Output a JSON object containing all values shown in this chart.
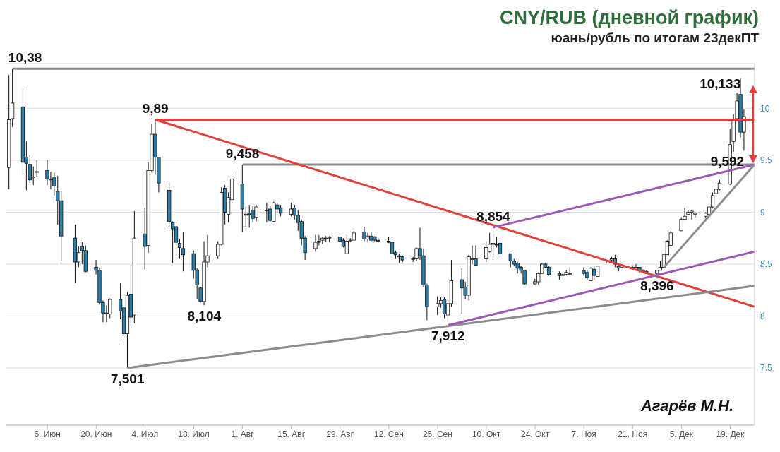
{
  "chart_data": {
    "type": "candlestick",
    "title": "CNY/RUB (дневной график)",
    "subtitle": "юань/рубль по итогам 23декПТ",
    "grid": "y",
    "colors": [
      "#ffffff",
      "#ffffff",
      "#2a7fab",
      "#2a7fab",
      "#2a7fab",
      "#ffffff",
      "#ffffff",
      "#2a7fab",
      "#2a7fab",
      "#2a7fab",
      "#2a7fab",
      "#2a7fab",
      "#2a7fab",
      "#ffffff",
      "#2a7fab",
      "#2a7fab",
      "#2a7fab",
      "#2a7fab",
      "#2a7fab",
      "#2a7fab",
      "#ffffff",
      "#2a7fab",
      "#2a7fab",
      "#ffffff",
      "#2a7fab",
      "#ffffff",
      "#2a7fab",
      "#ffffff",
      "#ffffff",
      "#2a7fab",
      "#2a7fab",
      "#2a7fab",
      "#2a7fab",
      "#2a7fab",
      "#2a7fab",
      "#2a7fab",
      "#2a7fab",
      "#2a7fab",
      "#2a7fab",
      "#ffffff",
      "#ffffff",
      "#ffffff",
      "#ffffff",
      "#2a7fab",
      "#ffffff",
      "#ffffff",
      "#2a7fab",
      "#2a7fab",
      "#2a7fab",
      "#2a7fab",
      "#ffffff",
      "#ffffff",
      "#2a7fab",
      "#ffffff",
      "#2a7fab",
      "#2a7fab",
      "#ffffff",
      "#2a7fab",
      "#2a7fab",
      "#2a7fab",
      "#2a7fab",
      "#ffffff",
      "#ffffff",
      "#ffffff",
      "#ffffff",
      "#2a7fab",
      "#2a7fab",
      "#2a7fab",
      "#ffffff",
      "#ffffff",
      "#ffffff",
      "#2a7fab",
      "#ffffff",
      "#2a7fab",
      "#2a7fab",
      "#2a7fab",
      "#2a7fab",
      "#2a7fab",
      "#2a7fab",
      "#2a7fab",
      "#2a7fab",
      "#ffffff",
      "#ffffff",
      "#2a7fab",
      "#2a7fab",
      "#2a7fab",
      "#ffffff",
      "#ffffff",
      "#2a7fab",
      "#ffffff",
      "#ffffff",
      "#2a7fab",
      "#2a7fab",
      "#ffffff",
      "#ffffff",
      "#2a7fab",
      "#ffffff",
      "#ffffff",
      "#ffffff",
      "#ffffff",
      "#2a7fab",
      "#2a7fab",
      "#2a7fab",
      "#2a7fab",
      "#2a7fab",
      "#2a7fab",
      "#ffffff",
      "#ffffff",
      "#ffffff",
      "#2a7fab",
      "#2a7fab",
      "#2a7fab",
      "#ffffff",
      "#ffffff",
      "#ffffff",
      "#2a7fab",
      "#2a7fab",
      "#ffffff",
      "#2a7fab",
      "#ffffff",
      "#ffffff",
      "#ffffff",
      "#2a7fab",
      "#2a7fab",
      "#ffffff",
      "#ffffff",
      "#ffffff",
      "#2a7fab",
      "#2a7fab",
      "#2a7fab",
      "#ffffff",
      "#ffffff",
      "#ffffff",
      "#ffffff",
      "#ffffff",
      "#ffffff",
      "#ffffff",
      "#ffffff",
      "#ffffff",
      "#ffffff",
      "#ffffff",
      "#ffffff",
      "#ffffff",
      "#ffffff",
      "#ffffff",
      "#ffffff",
      "#ffffff",
      "#ffffff",
      "#2a7fab",
      "#ffffff"
    ],
    "xlim": [
      "--05-25",
      "--12-26"
    ],
    "xticks": [
      {
        "value": "--06-06",
        "label": "6. Июн"
      },
      {
        "value": "--06-20",
        "label": "20. Июн"
      },
      {
        "value": "--07-04",
        "label": "4. Июл"
      },
      {
        "value": "--07-18",
        "label": "18. Июл"
      },
      {
        "value": "--08-01",
        "label": "1. Авг"
      },
      {
        "value": "--08-15",
        "label": "15. Авг"
      },
      {
        "value": "--08-29",
        "label": "29. Авг"
      },
      {
        "value": "--09-12",
        "label": "12. Сен"
      },
      {
        "value": "--09-26",
        "label": "26. Сен"
      },
      {
        "value": "--10-10",
        "label": "10. Окт"
      },
      {
        "value": "--10-24",
        "label": "24. Окт"
      },
      {
        "value": "--11-07",
        "label": "7. Ноя"
      },
      {
        "value": "--11-21",
        "label": "21. Ноя"
      },
      {
        "value": "--12-05",
        "label": "5. Дек"
      },
      {
        "value": "--12-19",
        "label": "19. Дек"
      }
    ],
    "ylim": [
      6.95,
      10.43
    ],
    "yticks": [
      7.5,
      8,
      8.5,
      9,
      9.5,
      10
    ],
    "x": [
      "--05-26",
      "--05-27",
      "--05-30",
      "--05-31",
      "--06-01",
      "--06-02",
      "--06-03",
      "--06-06",
      "--06-07",
      "--06-08",
      "--06-09",
      "--06-10",
      "--06-14",
      "--06-15",
      "--06-16",
      "--06-17",
      "--06-20",
      "--06-21",
      "--06-22",
      "--06-23",
      "--06-24",
      "--06-27",
      "--06-28",
      "--06-29",
      "--06-30",
      "--07-01",
      "--07-04",
      "--07-05",
      "--07-06",
      "--07-07",
      "--07-08",
      "--07-11",
      "--07-12",
      "--07-13",
      "--07-14",
      "--07-15",
      "--07-18",
      "--07-19",
      "--07-20",
      "--07-21",
      "--07-22",
      "--07-25",
      "--07-26",
      "--07-27",
      "--07-28",
      "--07-29",
      "--08-01",
      "--08-02",
      "--08-03",
      "--08-04",
      "--08-05",
      "--08-08",
      "--08-09",
      "--08-10",
      "--08-11",
      "--08-12",
      "--08-15",
      "--08-16",
      "--08-17",
      "--08-18",
      "--08-19",
      "--08-22",
      "--08-23",
      "--08-24",
      "--08-25",
      "--08-26",
      "--08-29",
      "--08-30",
      "--08-31",
      "--09-01",
      "--09-02",
      "--09-05",
      "--09-06",
      "--09-07",
      "--09-08",
      "--09-09",
      "--09-12",
      "--09-13",
      "--09-14",
      "--09-15",
      "--09-16",
      "--09-19",
      "--09-20",
      "--09-21",
      "--09-22",
      "--09-23",
      "--09-26",
      "--09-27",
      "--09-28",
      "--09-29",
      "--09-30",
      "--10-03",
      "--10-04",
      "--10-05",
      "--10-06",
      "--10-07",
      "--10-10",
      "--10-11",
      "--10-12",
      "--10-13",
      "--10-14",
      "--10-17",
      "--10-18",
      "--10-19",
      "--10-20",
      "--10-21",
      "--10-24",
      "--10-25",
      "--10-26",
      "--10-27",
      "--10-28",
      "--10-31",
      "--11-01",
      "--11-02",
      "--11-03",
      "--11-07",
      "--11-08",
      "--11-09",
      "--11-10",
      "--11-11",
      "--11-14",
      "--11-15",
      "--11-16",
      "--11-17",
      "--11-18",
      "--11-21",
      "--11-22",
      "--11-23",
      "--11-24",
      "--11-25",
      "--11-28",
      "--11-29",
      "--11-30",
      "--12-01",
      "--12-02",
      "--12-05",
      "--12-06",
      "--12-07",
      "--12-08",
      "--12-09",
      "--12-12",
      "--12-13",
      "--12-14",
      "--12-15",
      "--12-16",
      "--12-19",
      "--12-20",
      "--12-21",
      "--12-22",
      "--12-23"
    ],
    "ohlc": [
      [
        9.43,
        10.32,
        9.22,
        9.89
      ],
      [
        9.9,
        10.38,
        9.82,
        10.05
      ],
      [
        10.01,
        10.19,
        9.36,
        9.48
      ],
      [
        9.53,
        9.68,
        9.21,
        9.47
      ],
      [
        9.46,
        9.55,
        9.28,
        9.31
      ],
      [
        9.33,
        9.44,
        9.26,
        9.34
      ],
      [
        9.39,
        9.5,
        9.34,
        9.39
      ],
      [
        9.4,
        9.5,
        9.26,
        9.32
      ],
      [
        9.32,
        9.39,
        9.22,
        9.31
      ],
      [
        9.33,
        9.38,
        9.16,
        9.25
      ],
      [
        9.2,
        9.35,
        8.88,
        9.11
      ],
      [
        9.11,
        9.2,
        8.53,
        8.77
      ],
      [
        8.75,
        8.88,
        8.32,
        8.52
      ],
      [
        8.52,
        8.67,
        8.47,
        8.61
      ],
      [
        8.67,
        8.71,
        8.5,
        8.63
      ],
      [
        8.63,
        8.68,
        8.42,
        8.43
      ],
      [
        8.47,
        8.54,
        8.4,
        8.44
      ],
      [
        8.44,
        8.46,
        8.11,
        8.13
      ],
      [
        8.13,
        8.15,
        7.94,
        8.03
      ],
      [
        8.03,
        8.1,
        7.94,
        8.02
      ],
      [
        8.02,
        8.17,
        7.98,
        8.16
      ],
      [
        8.16,
        8.32,
        7.97,
        8.05
      ],
      [
        8.08,
        8.09,
        7.77,
        7.83
      ],
      [
        7.83,
        8.23,
        7.501,
        8.2
      ],
      [
        8.21,
        8.49,
        7.91,
        7.99
      ],
      [
        8.01,
        9.01,
        7.93,
        8.75
      ],
      [
        8.79,
        9.04,
        8.45,
        8.67
      ],
      [
        8.68,
        9.48,
        8.61,
        9.4
      ],
      [
        9.4,
        9.85,
        9.38,
        9.75
      ],
      [
        9.75,
        9.89,
        9.36,
        9.53
      ],
      [
        9.53,
        9.53,
        9.19,
        9.28
      ],
      [
        9.21,
        9.28,
        8.86,
        8.91
      ],
      [
        8.9,
        8.91,
        8.51,
        8.84
      ],
      [
        8.86,
        8.88,
        8.56,
        8.71
      ],
      [
        8.7,
        8.74,
        8.55,
        8.66
      ],
      [
        8.65,
        8.81,
        8.43,
        8.59
      ],
      [
        8.6,
        8.63,
        8.36,
        8.44
      ],
      [
        8.44,
        8.46,
        8.16,
        8.3
      ],
      [
        8.27,
        8.28,
        8.13,
        8.14
      ],
      [
        8.14,
        8.72,
        8.104,
        8.52
      ],
      [
        8.52,
        8.78,
        8.47,
        8.58
      ],
      [
        8.58,
        8.72,
        8.55,
        8.69
      ],
      [
        8.69,
        9.24,
        8.68,
        9.19
      ],
      [
        9.23,
        9.26,
        8.88,
        9.0
      ],
      [
        8.98,
        9.19,
        8.9,
        9.14
      ],
      [
        9.12,
        9.37,
        9.09,
        9.32
      ],
      [
        9.27,
        9.458,
        8.81,
        9.03
      ],
      [
        8.98,
        9.05,
        8.86,
        8.97
      ],
      [
        8.99,
        9.07,
        8.85,
        8.98
      ],
      [
        9.02,
        9.06,
        8.9,
        8.94
      ],
      [
        8.95,
        9.07,
        8.91,
        9.05
      ],
      [
        9.02,
        9.09,
        8.9,
        9.02
      ],
      [
        9.03,
        9.06,
        8.91,
        8.92
      ],
      [
        8.91,
        9.1,
        8.91,
        9.09
      ],
      [
        9.07,
        9.09,
        8.99,
        9.03
      ],
      [
        9.04,
        9.07,
        8.96,
        8.99
      ],
      [
        8.98,
        9.09,
        8.96,
        9.03
      ],
      [
        9.04,
        9.07,
        8.93,
        8.97
      ],
      [
        8.97,
        9.02,
        8.82,
        8.9
      ],
      [
        8.91,
        8.93,
        8.68,
        8.75
      ],
      [
        8.75,
        8.77,
        8.54,
        8.61
      ],
      [
        8.65,
        8.78,
        8.62,
        8.71
      ],
      [
        8.71,
        8.78,
        8.68,
        8.72
      ],
      [
        8.73,
        8.76,
        8.69,
        8.75
      ],
      [
        8.75,
        8.77,
        8.71,
        8.75
      ],
      [
        8.76,
        8.77,
        8.71,
        8.75
      ],
      [
        8.76,
        8.76,
        8.7,
        8.72
      ],
      [
        8.73,
        8.75,
        8.66,
        8.67
      ],
      [
        8.6,
        8.78,
        8.6,
        8.72
      ],
      [
        8.73,
        8.75,
        8.71,
        8.73
      ],
      [
        8.73,
        8.82,
        8.73,
        8.8
      ],
      [
        8.81,
        8.86,
        8.72,
        8.74
      ],
      [
        8.74,
        8.8,
        8.72,
        8.77
      ],
      [
        8.77,
        8.81,
        8.72,
        8.73
      ],
      [
        8.76,
        8.77,
        8.72,
        8.73
      ],
      [
        8.73,
        8.75,
        8.71,
        8.72
      ],
      [
        8.72,
        8.76,
        8.7,
        8.71
      ],
      [
        8.71,
        8.74,
        8.56,
        8.6
      ],
      [
        8.61,
        8.63,
        8.55,
        8.59
      ],
      [
        8.58,
        8.6,
        8.51,
        8.57
      ],
      [
        8.57,
        8.58,
        8.52,
        8.54
      ],
      [
        8.55,
        8.57,
        8.52,
        8.55
      ],
      [
        8.55,
        8.66,
        8.53,
        8.65
      ],
      [
        8.65,
        8.85,
        8.54,
        8.58
      ],
      [
        8.58,
        8.65,
        8.28,
        8.3
      ],
      [
        8.3,
        8.31,
        7.96,
        8.09
      ],
      [
        8.09,
        8.19,
        8.01,
        8.12
      ],
      [
        8.12,
        8.18,
        8.08,
        8.15
      ],
      [
        8.16,
        8.18,
        7.98,
        8.02
      ],
      [
        8.01,
        8.14,
        7.912,
        8.12
      ],
      [
        8.12,
        8.54,
        8.09,
        8.34
      ],
      [
        8.35,
        8.46,
        8.02,
        8.27
      ],
      [
        8.28,
        8.33,
        8.16,
        8.2
      ],
      [
        8.2,
        8.59,
        8.15,
        8.57
      ],
      [
        8.55,
        8.68,
        8.5,
        8.55
      ],
      [
        8.55,
        8.68,
        8.49,
        8.49
      ],
      [
        8.55,
        8.72,
        8.52,
        8.66
      ],
      [
        8.62,
        8.8,
        8.61,
        8.69
      ],
      [
        8.69,
        8.854,
        8.56,
        8.7
      ],
      [
        8.69,
        8.76,
        8.66,
        8.69
      ],
      [
        8.7,
        8.73,
        8.59,
        8.6
      ],
      [
        8.6,
        8.6,
        8.47,
        8.53
      ],
      [
        8.53,
        8.55,
        8.48,
        8.5
      ],
      [
        8.51,
        8.52,
        8.41,
        8.46
      ],
      [
        8.47,
        8.48,
        8.41,
        8.44
      ],
      [
        8.44,
        8.44,
        8.3,
        8.31
      ],
      [
        8.31,
        8.36,
        8.3,
        8.33
      ],
      [
        8.33,
        8.42,
        8.3,
        8.41
      ],
      [
        8.41,
        8.51,
        8.41,
        8.5
      ],
      [
        8.5,
        8.51,
        8.46,
        8.47
      ],
      [
        8.47,
        8.48,
        8.39,
        8.4
      ],
      [
        8.41,
        8.43,
        8.35,
        8.39
      ],
      [
        8.39,
        8.42,
        8.38,
        8.4
      ],
      [
        8.4,
        8.44,
        8.39,
        8.42
      ],
      [
        8.41,
        8.47,
        8.4,
        8.41
      ],
      [
        8.44,
        8.47,
        8.39,
        8.41
      ],
      [
        8.42,
        8.44,
        8.35,
        8.37
      ],
      [
        8.34,
        8.47,
        8.34,
        8.46
      ],
      [
        8.45,
        8.48,
        8.35,
        8.39
      ],
      [
        8.38,
        8.48,
        8.38,
        8.48
      ],
      [
        8.51,
        8.56,
        8.51,
        8.53
      ],
      [
        8.54,
        8.57,
        8.52,
        8.55
      ],
      [
        8.55,
        8.59,
        8.47,
        8.5
      ],
      [
        8.48,
        8.5,
        8.43,
        8.46
      ],
      [
        8.47,
        8.5,
        8.46,
        8.49
      ],
      [
        8.47,
        8.49,
        8.46,
        8.47
      ],
      [
        8.47,
        8.5,
        8.47,
        8.47
      ],
      [
        8.47,
        8.47,
        8.42,
        8.44
      ],
      [
        8.44,
        8.45,
        8.42,
        8.43
      ],
      [
        8.43,
        8.44,
        8.41,
        8.41
      ],
      [
        8.41,
        8.44,
        8.396,
        8.44
      ],
      [
        8.44,
        8.53,
        8.44,
        8.47
      ],
      [
        8.47,
        8.61,
        8.47,
        8.59
      ],
      [
        8.59,
        8.73,
        8.59,
        8.72
      ],
      [
        8.68,
        8.82,
        8.68,
        8.8
      ],
      [
        8.82,
        8.95,
        8.82,
        8.93
      ],
      [
        8.93,
        9.04,
        8.92,
        8.96
      ],
      [
        8.98,
        9.02,
        8.97,
        9.0
      ],
      [
        9.0,
        9.02,
        8.93,
        9.01
      ],
      [
        8.98,
        9.0,
        8.95,
        8.99
      ],
      [
        8.96,
        9.0,
        8.95,
        8.99
      ],
      [
        8.98,
        9.06,
        8.97,
        9.05
      ],
      [
        9.05,
        9.19,
        9.04,
        9.16
      ],
      [
        9.18,
        9.29,
        9.14,
        9.22
      ],
      [
        9.22,
        9.31,
        9.21,
        9.28
      ],
      [
        9.27,
        9.8,
        9.26,
        9.65
      ],
      [
        9.68,
        9.94,
        9.58,
        9.88
      ],
      [
        9.9,
        10.15,
        9.89,
        10.07
      ],
      [
        10.133,
        10.29,
        9.72,
        9.77
      ],
      [
        9.77,
        9.99,
        9.592,
        9.92
      ]
    ],
    "series": [
      {
        "type": "line",
        "color": "#8c8c8c",
        "x": [
          "--05-27",
          "--12-26"
        ],
        "values": [
          10.38,
          10.38
        ]
      },
      {
        "type": "line",
        "color": "#e0403a",
        "x": [
          "--07-07",
          "--12-26"
        ],
        "values": [
          9.89,
          9.89
        ]
      },
      {
        "type": "line",
        "color": "#8c8c8c",
        "x": [
          "--08-01",
          "--12-26"
        ],
        "values": [
          9.458,
          9.458
        ]
      },
      {
        "type": "line",
        "color": "#e0403a",
        "x": [
          "--07-07",
          "--12-26"
        ],
        "values": [
          9.89,
          8.09
        ]
      },
      {
        "type": "line",
        "color": "#8c8c8c",
        "x": [
          "--06-29",
          "--12-26"
        ],
        "values": [
          7.501,
          8.29
        ]
      },
      {
        "type": "line",
        "color": "#9b59b6",
        "x": [
          "--09-29",
          "--12-26"
        ],
        "values": [
          7.912,
          8.62
        ]
      },
      {
        "type": "line",
        "color": "#9b59b6",
        "x": [
          "--10-12",
          "--12-26"
        ],
        "values": [
          8.854,
          9.458
        ]
      },
      {
        "type": "line",
        "color": "#8c8c8c",
        "x": [
          "--11-30",
          "--12-26"
        ],
        "values": [
          8.47,
          9.458
        ]
      }
    ],
    "annotations": [
      {
        "text": "10,38",
        "x": "--05-27",
        "y": 10.38
      },
      {
        "text": "9,89",
        "x": "--07-07",
        "y": 9.89
      },
      {
        "text": "9,458",
        "x": "--08-01",
        "y": 9.458
      },
      {
        "text": "8,104",
        "x": "--07-21",
        "y": 8.104
      },
      {
        "text": "7,501",
        "x": "--06-29",
        "y": 7.501
      },
      {
        "text": "8,854",
        "x": "--10-12",
        "y": 8.854
      },
      {
        "text": "7,912",
        "x": "--09-29",
        "y": 7.912
      },
      {
        "text": "8,396",
        "x": "--11-28",
        "y": 8.396
      },
      {
        "text": "10,133",
        "x": "--12-22",
        "y": 10.133
      },
      {
        "text": "9,592",
        "x": "--12-23",
        "y": 9.592
      },
      "Агарёв М.Н."
    ]
  }
}
